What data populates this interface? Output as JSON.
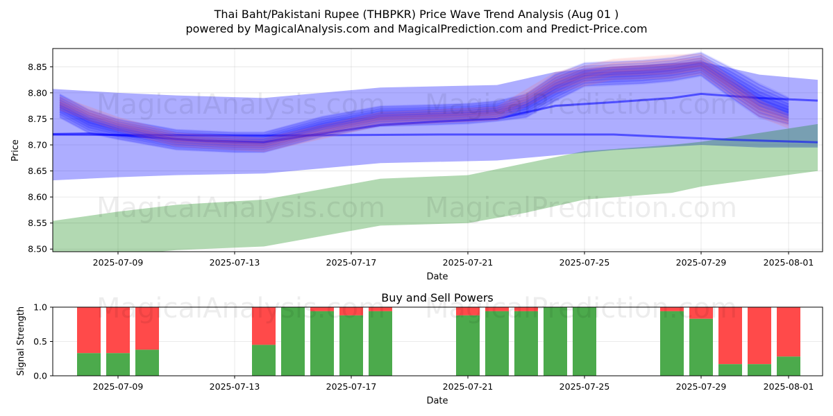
{
  "title_line1": "Thai Baht/Pakistani Rupee (THBPKR) Price Wave Trend Analysis (Aug 01 )",
  "title_line2": "powered by MagicalAnalysis.com and MagicalPrediction.com and Predict-Price.com",
  "watermarks": [
    "MagicalAnalysis.com",
    "MagicalPrediction.com"
  ],
  "colors": {
    "blue_band": "#0000ff",
    "green_band": "#008000",
    "buy": "#4caa4c",
    "sell": "#ff4a4a",
    "red_wave": "#ff6666"
  },
  "chart_data": [
    {
      "type": "area",
      "title": "",
      "xlabel": "Date",
      "ylabel": "Price",
      "x_ticks": [
        "2025-07-09",
        "2025-07-13",
        "2025-07-17",
        "2025-07-21",
        "2025-07-25",
        "2025-07-29",
        "2025-08-01"
      ],
      "y_ticks": [
        "8.50",
        "8.55",
        "8.60",
        "8.65",
        "8.70",
        "8.75",
        "8.80",
        "8.85"
      ],
      "ylim": [
        8.495,
        8.885
      ],
      "xlim": [
        "2025-07-06",
        "2025-08-02"
      ],
      "grid": true,
      "series": [
        {
          "kind": "band",
          "color": "blue",
          "x": [
            "2025-07-06",
            "2025-07-09",
            "2025-07-11",
            "2025-07-14",
            "2025-07-18",
            "2025-07-22",
            "2025-07-24",
            "2025-07-26",
            "2025-07-29",
            "2025-07-31",
            "2025-08-02"
          ],
          "upper": [
            8.81,
            8.8,
            8.795,
            8.79,
            8.81,
            8.815,
            8.84,
            8.85,
            8.86,
            8.835,
            8.825
          ],
          "lower": [
            8.63,
            8.638,
            8.642,
            8.645,
            8.665,
            8.67,
            8.68,
            8.69,
            8.7,
            8.695,
            8.695
          ]
        },
        {
          "kind": "band",
          "color": "green",
          "x": [
            "2025-07-06",
            "2025-07-09",
            "2025-07-11",
            "2025-07-14",
            "2025-07-18",
            "2025-07-21",
            "2025-07-23",
            "2025-07-25",
            "2025-07-28",
            "2025-07-29",
            "2025-08-02"
          ],
          "upper": [
            8.548,
            8.572,
            8.585,
            8.595,
            8.635,
            8.642,
            8.665,
            8.688,
            8.7,
            8.706,
            8.74
          ],
          "lower": [
            8.47,
            8.488,
            8.498,
            8.505,
            8.545,
            8.55,
            8.57,
            8.595,
            8.608,
            8.62,
            8.65
          ]
        },
        {
          "kind": "line",
          "color": "blue",
          "x": [
            "2025-07-06",
            "2025-07-08",
            "2025-07-10",
            "2025-07-12",
            "2025-07-14",
            "2025-07-16",
            "2025-07-18",
            "2025-07-20",
            "2025-07-22",
            "2025-07-24",
            "2025-07-26",
            "2025-07-28",
            "2025-07-29",
            "2025-07-31",
            "2025-08-02"
          ],
          "y": [
            8.72,
            8.722,
            8.715,
            8.708,
            8.705,
            8.722,
            8.738,
            8.745,
            8.75,
            8.775,
            8.782,
            8.79,
            8.798,
            8.79,
            8.785
          ]
        },
        {
          "kind": "line",
          "color": "blue",
          "x": [
            "2025-07-06",
            "2025-07-14",
            "2025-07-20",
            "2025-07-26",
            "2025-07-30",
            "2025-08-02"
          ],
          "y": [
            8.72,
            8.718,
            8.72,
            8.72,
            8.71,
            8.705
          ]
        },
        {
          "kind": "waves",
          "color": "blue",
          "x": [
            "2025-07-07",
            "2025-07-08",
            "2025-07-09",
            "2025-07-10",
            "2025-07-11",
            "2025-07-13",
            "2025-07-14",
            "2025-07-15",
            "2025-07-16",
            "2025-07-17",
            "2025-07-18",
            "2025-07-20",
            "2025-07-21",
            "2025-07-22",
            "2025-07-23",
            "2025-07-24",
            "2025-07-25",
            "2025-07-27",
            "2025-07-28",
            "2025-07-29",
            "2025-07-30",
            "2025-07-31",
            "2025-08-01"
          ],
          "y": [
            8.775,
            8.745,
            8.73,
            8.72,
            8.71,
            8.705,
            8.705,
            8.72,
            8.735,
            8.745,
            8.755,
            8.758,
            8.76,
            8.765,
            8.775,
            8.81,
            8.835,
            8.84,
            8.845,
            8.855,
            8.82,
            8.785,
            8.765
          ],
          "spread": [
            0.035,
            0.035,
            0.03,
            0.03,
            0.03,
            0.03,
            0.03,
            0.03,
            0.03,
            0.03,
            0.03,
            0.03,
            0.03,
            0.03,
            0.035,
            0.04,
            0.035,
            0.035,
            0.035,
            0.035,
            0.045,
            0.05,
            0.04
          ]
        },
        {
          "kind": "waves",
          "color": "red",
          "x": [
            "2025-07-07",
            "2025-07-09",
            "2025-07-11",
            "2025-07-14",
            "2025-07-18",
            "2025-07-22",
            "2025-07-24",
            "2025-07-26",
            "2025-07-28",
            "2025-07-29",
            "2025-07-31",
            "2025-08-01"
          ],
          "y": [
            8.78,
            8.74,
            8.71,
            8.7,
            8.75,
            8.76,
            8.82,
            8.845,
            8.85,
            8.855,
            8.77,
            8.745
          ],
          "spread": [
            0.02,
            0.02,
            0.02,
            0.02,
            0.02,
            0.02,
            0.03,
            0.03,
            0.035,
            0.03,
            0.025,
            0.02
          ]
        }
      ]
    },
    {
      "type": "bar",
      "title": "Buy and Sell Powers",
      "xlabel": "Date",
      "ylabel": "Signal Strength",
      "x_ticks": [
        "2025-07-09",
        "2025-07-13",
        "2025-07-17",
        "2025-07-21",
        "2025-07-25",
        "2025-07-29",
        "2025-08-01"
      ],
      "y_ticks": [
        "0.0",
        "0.5",
        "1.0"
      ],
      "ylim": [
        0,
        1
      ],
      "categories": [
        "2025-07-08",
        "2025-07-09",
        "2025-07-10",
        "2025-07-14",
        "2025-07-15",
        "2025-07-16",
        "2025-07-17",
        "2025-07-18",
        "2025-07-21",
        "2025-07-22",
        "2025-07-23",
        "2025-07-24",
        "2025-07-25",
        "2025-07-28",
        "2025-07-29",
        "2025-07-30",
        "2025-07-31",
        "2025-08-01"
      ],
      "series": [
        {
          "role": "buy",
          "values": [
            0.33,
            0.33,
            0.38,
            0.45,
            1.0,
            0.94,
            0.88,
            0.94,
            0.88,
            0.94,
            0.94,
            1.0,
            1.0,
            0.94,
            0.83,
            0.17,
            0.17,
            0.28
          ]
        },
        {
          "role": "sell",
          "values": [
            0.67,
            0.67,
            0.62,
            0.55,
            0.0,
            0.06,
            0.12,
            0.06,
            0.12,
            0.06,
            0.06,
            0.0,
            0.0,
            0.06,
            0.17,
            0.83,
            0.83,
            0.72
          ]
        }
      ]
    }
  ]
}
